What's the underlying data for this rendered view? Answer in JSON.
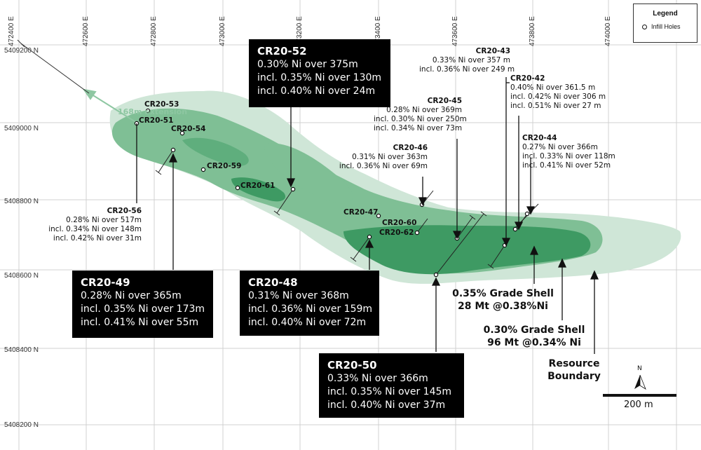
{
  "colors": {
    "outer_shell": "#cfe6d7",
    "mid_shell": "#7fbf95",
    "core_shell": "#3e9a63",
    "box_bg": "#000000",
    "extension": "#8ec7a2"
  },
  "axes": {
    "eastings": [
      "472400 E",
      "472600 E",
      "472800 E",
      "473000 E",
      "473200 E",
      "473400 E",
      "473600 E",
      "473800 E",
      "474000 E"
    ],
    "northings": [
      "5409200 N",
      "5409000 N",
      "5408800 N",
      "5408600 N",
      "5408400 N",
      "5408200 N"
    ]
  },
  "legend": {
    "title": "Legend",
    "item": "Infill Holes"
  },
  "extension_label": "168m extension",
  "holes": {
    "cr2053": "CR20-53",
    "cr2051": "CR20-51",
    "cr2054": "CR20-54",
    "cr2059": "CR20-59",
    "cr2061": "CR20-61",
    "cr2047": "CR20-47",
    "cr2060": "CR20-60",
    "cr2062": "CR20-62"
  },
  "boxes": {
    "cr2052": {
      "title": "CR20-52",
      "lines": [
        "0.30% Ni over 375m",
        "incl. 0.35% Ni over 130m",
        "incl. 0.40% Ni over 24m"
      ]
    },
    "cr2049": {
      "title": "CR20-49",
      "lines": [
        "0.28% Ni over 365m",
        "incl. 0.35% Ni over 173m",
        "incl. 0.41% Ni over 55m"
      ]
    },
    "cr2048": {
      "title": "CR20-48",
      "lines": [
        "0.31% Ni over 368m",
        "incl. 0.36% Ni over 159m",
        "incl. 0.40% Ni over 72m"
      ]
    },
    "cr2050": {
      "title": "CR20-50",
      "lines": [
        "0.33% Ni over 366m",
        "incl. 0.35% Ni over 145m",
        "incl. 0.40% Ni over 37m"
      ]
    }
  },
  "labels": {
    "cr2043": {
      "title": "CR20-43",
      "lines": [
        "0.33% Ni over 357 m",
        "incl. 0.36% Ni over 249 m"
      ]
    },
    "cr2042": {
      "title": "CR20-42",
      "lines": [
        "0.40% Ni over 361.5 m",
        "incl. 0.42% Ni over 306 m",
        "incl. 0.51% Ni over 27 m"
      ]
    },
    "cr2045": {
      "title": "CR20-45",
      "lines": [
        "0.28% Ni over 369m",
        "incl. 0.30% Ni over 250m",
        "incl. 0.34% Ni over 73m"
      ]
    },
    "cr2046": {
      "title": "CR20-46",
      "lines": [
        "0.31% Ni over 363m",
        "incl. 0.36% Ni over 69m"
      ]
    },
    "cr2044": {
      "title": "CR20-44",
      "lines": [
        "0.27% Ni over 366m",
        "incl. 0.33% Ni over 118m",
        "incl. 0.41% Ni over 52m"
      ]
    },
    "cr2056": {
      "title": "CR20-56",
      "lines": [
        "0.28% Ni over 517m",
        "incl. 0.34% Ni over 148m",
        "incl. 0.42% Ni over 31m"
      ]
    }
  },
  "shells": {
    "shell035": [
      "0.35% Grade Shell",
      "28 Mt @0.38%Ni"
    ],
    "shell030": [
      "0.30% Grade Shell",
      "96 Mt @0.34% Ni"
    ],
    "resource": [
      "Resource",
      "Boundary"
    ]
  },
  "north": "N",
  "scale": "200 m"
}
